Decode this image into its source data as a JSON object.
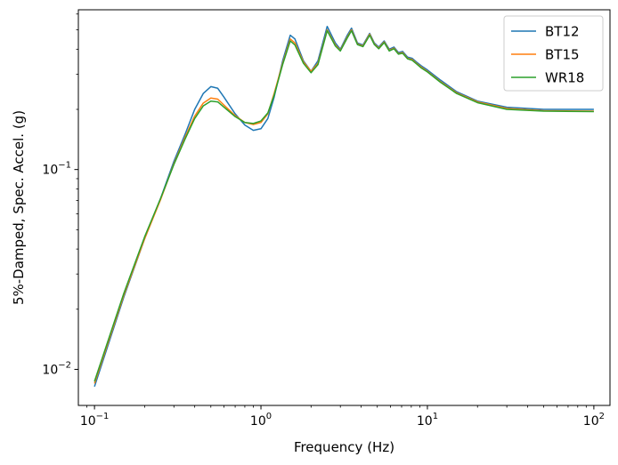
{
  "chart_data": {
    "type": "line",
    "xscale": "log",
    "yscale": "log",
    "xlabel": "Frequency (Hz)",
    "ylabel": "5%-Damped, Spec. Accel. (g)",
    "xlim": [
      0.08,
      125
    ],
    "ylim": [
      0.0066,
      0.63
    ],
    "x_ticks": [
      {
        "value": 0.1,
        "base": "10",
        "exp": "−1"
      },
      {
        "value": 1,
        "base": "10",
        "exp": "0"
      },
      {
        "value": 10,
        "base": "10",
        "exp": "1"
      },
      {
        "value": 100,
        "base": "10",
        "exp": "2"
      }
    ],
    "y_ticks": [
      {
        "value": 0.01,
        "base": "10",
        "exp": "−2"
      },
      {
        "value": 0.1,
        "base": "10",
        "exp": "−1"
      }
    ],
    "legend_position": "top-right",
    "grid": false,
    "x": [
      0.1,
      0.15,
      0.2,
      0.25,
      0.3,
      0.35,
      0.4,
      0.45,
      0.5,
      0.55,
      0.6,
      0.7,
      0.8,
      0.9,
      1.0,
      1.1,
      1.2,
      1.35,
      1.5,
      1.6,
      1.8,
      2.0,
      2.2,
      2.5,
      2.8,
      3.0,
      3.3,
      3.5,
      3.8,
      4.1,
      4.5,
      4.8,
      5.1,
      5.5,
      5.9,
      6.3,
      6.7,
      7.1,
      7.6,
      8.1,
      8.6,
      9.2,
      10.0,
      12.0,
      15.0,
      20.0,
      30.0,
      50.0,
      100.0
    ],
    "series": [
      {
        "name": "BT12",
        "color": "#1f77b4",
        "values": [
          0.0082,
          0.023,
          0.045,
          0.072,
          0.11,
          0.15,
          0.2,
          0.24,
          0.26,
          0.255,
          0.23,
          0.19,
          0.167,
          0.157,
          0.16,
          0.18,
          0.23,
          0.35,
          0.47,
          0.45,
          0.35,
          0.31,
          0.35,
          0.52,
          0.43,
          0.4,
          0.47,
          0.51,
          0.43,
          0.42,
          0.48,
          0.43,
          0.41,
          0.44,
          0.4,
          0.41,
          0.385,
          0.39,
          0.365,
          0.36,
          0.345,
          0.33,
          0.315,
          0.28,
          0.245,
          0.22,
          0.205,
          0.2,
          0.2
        ]
      },
      {
        "name": "BT15",
        "color": "#ff7f0e",
        "values": [
          0.0085,
          0.0235,
          0.045,
          0.071,
          0.107,
          0.145,
          0.185,
          0.215,
          0.228,
          0.225,
          0.21,
          0.186,
          0.172,
          0.168,
          0.172,
          0.19,
          0.24,
          0.34,
          0.45,
          0.43,
          0.345,
          0.31,
          0.34,
          0.5,
          0.42,
          0.395,
          0.46,
          0.5,
          0.425,
          0.415,
          0.475,
          0.425,
          0.405,
          0.435,
          0.395,
          0.405,
          0.38,
          0.385,
          0.36,
          0.355,
          0.34,
          0.325,
          0.31,
          0.275,
          0.242,
          0.218,
          0.202,
          0.197,
          0.196
        ]
      },
      {
        "name": "WR18",
        "color": "#2ca02c",
        "values": [
          0.0087,
          0.024,
          0.046,
          0.072,
          0.106,
          0.142,
          0.18,
          0.208,
          0.22,
          0.218,
          0.205,
          0.184,
          0.172,
          0.17,
          0.175,
          0.192,
          0.235,
          0.335,
          0.44,
          0.42,
          0.34,
          0.305,
          0.335,
          0.495,
          0.415,
          0.392,
          0.455,
          0.495,
          0.422,
          0.412,
          0.47,
          0.422,
          0.402,
          0.432,
          0.392,
          0.402,
          0.378,
          0.382,
          0.358,
          0.352,
          0.338,
          0.322,
          0.308,
          0.273,
          0.24,
          0.216,
          0.2,
          0.196,
          0.195
        ]
      }
    ]
  }
}
